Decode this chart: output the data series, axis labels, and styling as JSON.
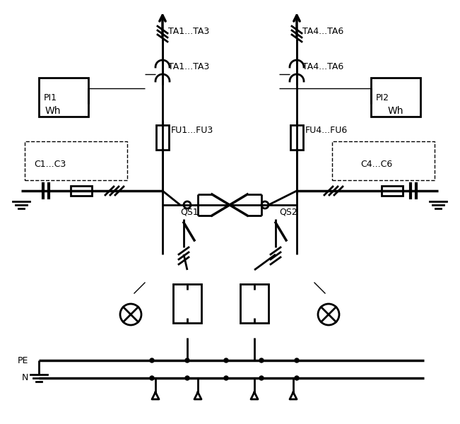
{
  "bg_color": "#ffffff",
  "line_color": "#000000",
  "line_width": 2.0,
  "thin_line": 1.0,
  "figsize": [
    6.51,
    6.0
  ],
  "dpi": 100,
  "labels": {
    "TA1_TA3": "TA1...TA3",
    "TA4_TA6": "TA4...TA6",
    "FU1_FU3": "FU1...FU3",
    "FU4_FU6": "FU4...FU6",
    "C1_C3": "C1...C3",
    "C4_C6": "C4...C6",
    "QS1": "QS1",
    "QS2": "QS2",
    "PI1": "PI1",
    "PI2": "PI2",
    "Wh1": "Wh",
    "Wh2": "Wh",
    "PE": "PE",
    "N": "N"
  }
}
